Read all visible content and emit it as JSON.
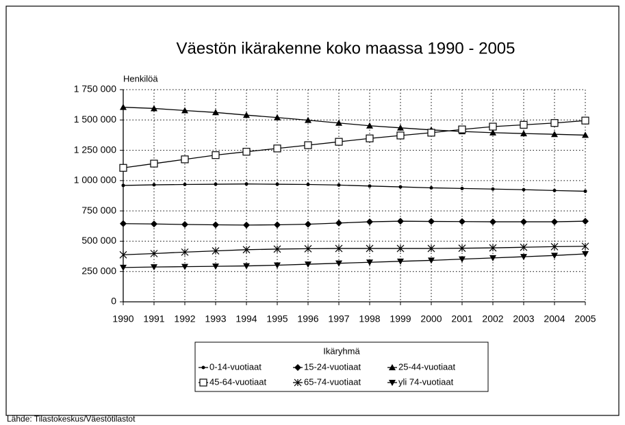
{
  "chart_data": {
    "type": "line",
    "title": "Väestön ikärakenne koko maassa 1990 - 2005",
    "y_label": "Henkilöä",
    "legend_title": "Ikäryhmä",
    "source": "Lähde: Tilastokeskus/Väestötilastot",
    "x": [
      1990,
      1991,
      1992,
      1993,
      1994,
      1995,
      1996,
      1997,
      1998,
      1999,
      2000,
      2001,
      2002,
      2003,
      2004,
      2005
    ],
    "xlim": [
      1990,
      2005
    ],
    "xticks": [
      1990,
      1991,
      1992,
      1993,
      1994,
      1995,
      1996,
      1997,
      1998,
      1999,
      2000,
      2001,
      2002,
      2003,
      2004,
      2005
    ],
    "ylim": [
      0,
      1750000
    ],
    "yticks": [
      0,
      {
        "value": 250000,
        "label": "250 000"
      },
      {
        "value": 500000,
        "label": "500 000"
      },
      {
        "value": 750000,
        "label": "750 000"
      },
      {
        "value": 1000000,
        "label": "1 000 000"
      },
      {
        "value": 1250000,
        "label": "1 250 000"
      },
      {
        "value": 1500000,
        "label": "1 500 000"
      },
      {
        "value": 1750000,
        "label": "1 750 000"
      }
    ],
    "grid": true,
    "legend": "bottom",
    "series": [
      {
        "name": "0-14-vuotiaat",
        "color": "#000000",
        "marker": "circle",
        "values": [
          960000,
          965000,
          968000,
          970000,
          972000,
          970000,
          968000,
          963000,
          955000,
          948000,
          940000,
          935000,
          930000,
          925000,
          918000,
          912000
        ]
      },
      {
        "name": "15-24-vuotiaat",
        "color": "#000000",
        "marker": "diamond",
        "values": [
          645000,
          642000,
          638000,
          635000,
          633000,
          635000,
          640000,
          650000,
          660000,
          665000,
          663000,
          662000,
          660000,
          660000,
          660000,
          665000
        ]
      },
      {
        "name": "25-44-vuotiaat",
        "color": "#000000",
        "marker": "triangle",
        "values": [
          1605000,
          1595000,
          1578000,
          1562000,
          1540000,
          1520000,
          1498000,
          1475000,
          1452000,
          1435000,
          1418000,
          1405000,
          1395000,
          1388000,
          1382000,
          1375000
        ]
      },
      {
        "name": "45-64-vuotiaat",
        "color": "#000000",
        "marker": "square-open",
        "values": [
          1105000,
          1140000,
          1175000,
          1210000,
          1238000,
          1265000,
          1292000,
          1320000,
          1348000,
          1372000,
          1395000,
          1422000,
          1445000,
          1460000,
          1475000,
          1495000
        ]
      },
      {
        "name": "65-74-vuotiaat",
        "color": "#000000",
        "marker": "star",
        "values": [
          388000,
          398000,
          410000,
          420000,
          430000,
          435000,
          438000,
          440000,
          440000,
          440000,
          440000,
          442000,
          445000,
          450000,
          455000,
          458000
        ]
      },
      {
        "name": "yli 74-vuotiaat",
        "color": "#000000",
        "marker": "triangle-down",
        "values": [
          283000,
          287000,
          290000,
          293000,
          296000,
          302000,
          310000,
          318000,
          326000,
          334000,
          342000,
          352000,
          362000,
          372000,
          382000,
          395000
        ]
      }
    ]
  }
}
